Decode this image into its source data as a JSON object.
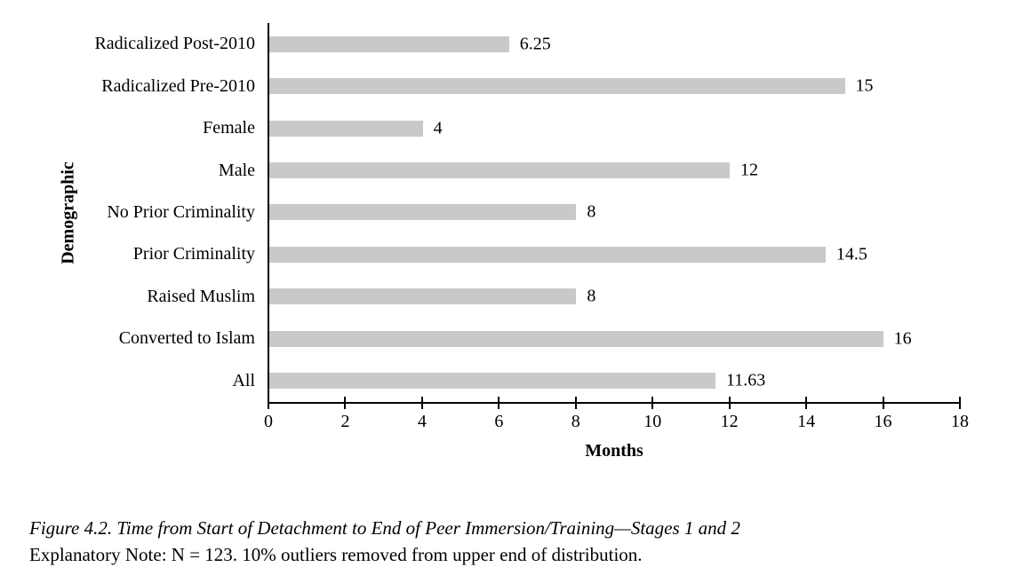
{
  "chart_data": {
    "type": "bar",
    "orientation": "horizontal",
    "categories": [
      "Radicalized Post-2010",
      "Radicalized Pre-2010",
      "Female",
      "Male",
      "No Prior Criminality",
      "Prior Criminality",
      "Raised Muslim",
      "Converted to Islam",
      "All"
    ],
    "values": [
      6.25,
      15,
      4,
      12,
      8,
      14.5,
      8,
      16,
      11.63
    ],
    "value_labels": [
      "6.25",
      "15",
      "4",
      "12",
      "8",
      "14.5",
      "8",
      "16",
      "11.63"
    ],
    "xlabel": "Months",
    "ylabel": "Demographic",
    "xlim": [
      0,
      18
    ],
    "xticks": [
      0,
      2,
      4,
      6,
      8,
      10,
      12,
      14,
      16,
      18
    ],
    "grid": false,
    "legend_position": "none",
    "bar_color": "#c9c9c9",
    "axis_color": "#000000",
    "text_color": "#000000"
  },
  "caption": {
    "line1": "Figure 4.2. Time from Start of Detachment to End of Peer Immersion/Training—Stages 1 and 2",
    "line2": "Explanatory Note: N = 123. 10% outliers removed from upper end of distribution."
  }
}
